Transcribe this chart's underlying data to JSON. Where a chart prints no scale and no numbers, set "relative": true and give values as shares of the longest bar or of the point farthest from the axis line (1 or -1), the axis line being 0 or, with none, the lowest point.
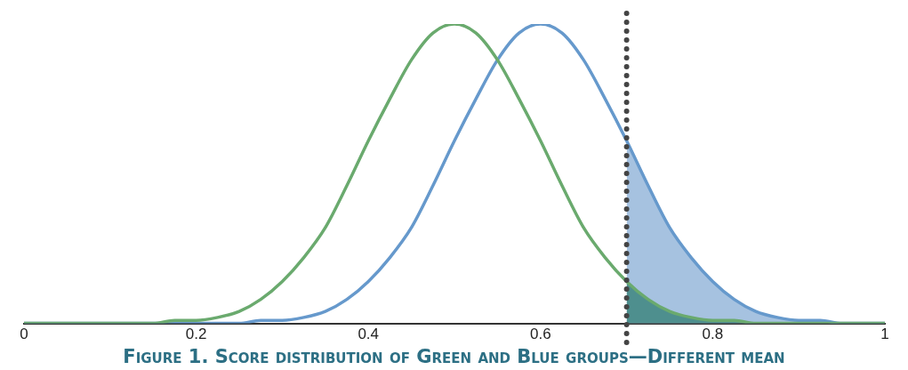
{
  "chart_data": {
    "type": "line",
    "title": "Figure 1. Score distribution of Green and Blue groups—Different mean",
    "relative": true,
    "x": [
      0,
      0.025,
      0.05,
      0.075,
      0.1,
      0.125,
      0.15,
      0.175,
      0.2,
      0.225,
      0.25,
      0.275,
      0.3,
      0.325,
      0.35,
      0.375,
      0.4,
      0.425,
      0.45,
      0.475,
      0.5,
      0.525,
      0.55,
      0.575,
      0.6,
      0.625,
      0.65,
      0.675,
      0.7,
      0.725,
      0.75,
      0.775,
      0.8,
      0.825,
      0.85,
      0.875,
      0.9,
      0.925,
      0.95,
      0.975,
      1
    ],
    "xlim": [
      0,
      1
    ],
    "xticks": [
      0,
      0.2,
      0.4,
      0.6,
      0.8,
      1
    ],
    "grid": false,
    "legend": false,
    "marker": "none",
    "series": [
      {
        "type": "line",
        "color": "#6aaa6e",
        "values": [
          0,
          0,
          0,
          0,
          0,
          0,
          0,
          0.01,
          0.01,
          0.02,
          0.04,
          0.08,
          0.14,
          0.22,
          0.32,
          0.46,
          0.61,
          0.75,
          0.88,
          0.97,
          1,
          0.97,
          0.88,
          0.75,
          0.61,
          0.46,
          0.32,
          0.22,
          0.14,
          0.08,
          0.04,
          0.02,
          0.01,
          0.01,
          0,
          0,
          0,
          0,
          0,
          0,
          0
        ]
      },
      {
        "type": "line",
        "color": "#6699cc",
        "values": [
          0,
          0,
          0,
          0,
          0,
          0,
          0,
          0,
          0,
          0,
          0,
          0.01,
          0.01,
          0.02,
          0.04,
          0.08,
          0.14,
          0.22,
          0.32,
          0.46,
          0.61,
          0.75,
          0.88,
          0.97,
          1,
          0.97,
          0.88,
          0.75,
          0.61,
          0.46,
          0.32,
          0.22,
          0.14,
          0.08,
          0.04,
          0.02,
          0.01,
          0.01,
          0,
          0,
          0
        ]
      },
      {
        "type": "area",
        "color": "#a6c2e0",
        "x": [
          0.7,
          0.725,
          0.75,
          0.775,
          0.8,
          0.825,
          0.85,
          0.875,
          0.9,
          0.925,
          0.95,
          0.975,
          1
        ],
        "values": [
          0.61,
          0.46,
          0.32,
          0.22,
          0.14,
          0.08,
          0.04,
          0.02,
          0.01,
          0.01,
          0,
          0,
          0
        ]
      },
      {
        "type": "area",
        "color": "#4e8f8e",
        "x": [
          0.7,
          0.725,
          0.75,
          0.775,
          0.8,
          0.825,
          0.85,
          0.875,
          0.9,
          0.925,
          0.95,
          0.975,
          1
        ],
        "values": [
          0.14,
          0.08,
          0.04,
          0.02,
          0.01,
          0.01,
          0,
          0,
          0,
          0,
          0,
          0,
          0
        ]
      }
    ],
    "ref_lines": [
      {
        "axis": "x",
        "value": 0.7,
        "color": "#444444",
        "line_style": "dotted"
      }
    ]
  }
}
